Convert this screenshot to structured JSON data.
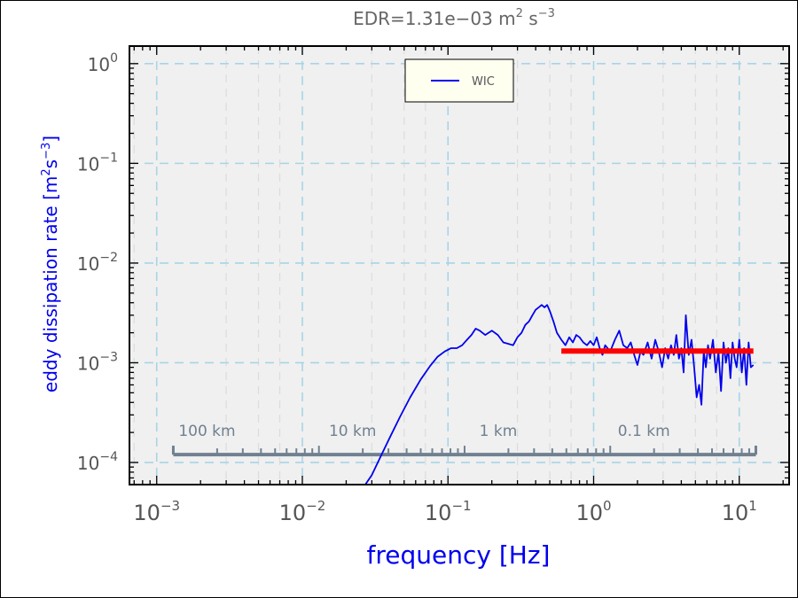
{
  "chart_data": {
    "type": "line",
    "title": "EDR=1.31e−03  m",
    "title_sup1": "2",
    "title_mid": " s",
    "title_sup2": "−3",
    "xlabel": "frequency [Hz]",
    "ylabel_main": "eddy dissipation rate [m",
    "ylabel_sup1": "2",
    "ylabel_mid": "s",
    "ylabel_sup2": "−3",
    "ylabel_end": "]",
    "x_scale": "log",
    "y_scale": "log",
    "xlim": [
      0.00065,
      22
    ],
    "ylim": [
      6e-05,
      1.5
    ],
    "grid": true,
    "legend_placement": "top-center",
    "x_ticks": [
      {
        "value": 0.001,
        "base": "10",
        "exp": "−3"
      },
      {
        "value": 0.01,
        "base": "10",
        "exp": "−2"
      },
      {
        "value": 0.1,
        "base": "10",
        "exp": "−1"
      },
      {
        "value": 1,
        "base": "10",
        "exp": "0"
      },
      {
        "value": 10,
        "base": "10",
        "exp": "1"
      }
    ],
    "y_ticks": [
      {
        "value": 0.0001,
        "base": "10",
        "exp": "−4"
      },
      {
        "value": 0.001,
        "base": "10",
        "exp": "−3"
      },
      {
        "value": 0.01,
        "base": "10",
        "exp": "−2"
      },
      {
        "value": 0.1,
        "base": "10",
        "exp": "−1"
      },
      {
        "value": 1,
        "base": "10",
        "exp": "0"
      }
    ],
    "distance_scale": {
      "labels": [
        {
          "text": "100 km",
          "freq": 0.0013
        },
        {
          "text": "10 km",
          "freq": 0.013
        },
        {
          "text": "1 km",
          "freq": 0.13
        },
        {
          "text": "0.1 km",
          "freq": 1.3
        }
      ],
      "range": [
        0.0013,
        13
      ],
      "y_value": 0.00012,
      "color": "#708090"
    },
    "series": [
      {
        "name": "WIC",
        "color": "#0000ee",
        "x": [
          0.026,
          0.03,
          0.034,
          0.04,
          0.047,
          0.055,
          0.065,
          0.075,
          0.085,
          0.095,
          0.105,
          0.115,
          0.125,
          0.135,
          0.145,
          0.155,
          0.165,
          0.18,
          0.2,
          0.22,
          0.24,
          0.26,
          0.28,
          0.3,
          0.32,
          0.34,
          0.36,
          0.38,
          0.4,
          0.42,
          0.44,
          0.46,
          0.48,
          0.5,
          0.53,
          0.56,
          0.6,
          0.64,
          0.68,
          0.72,
          0.76,
          0.8,
          0.85,
          0.9,
          0.95,
          1.0,
          1.05,
          1.1,
          1.15,
          1.2,
          1.3,
          1.4,
          1.5,
          1.6,
          1.7,
          1.8,
          1.9,
          2.0,
          2.1,
          2.2,
          2.35,
          2.5,
          2.65,
          2.8,
          2.95,
          3.1,
          3.25,
          3.4,
          3.55,
          3.7,
          3.85,
          4.0,
          4.15,
          4.3,
          4.5,
          4.7,
          4.9,
          5.1,
          5.3,
          5.5,
          5.7,
          5.9,
          6.1,
          6.3,
          6.6,
          6.9,
          7.2,
          7.5,
          7.8,
          8.1,
          8.4,
          8.7,
          9.0,
          9.3,
          9.6,
          10.0,
          10.4,
          10.8,
          11.2,
          11.6,
          12.0,
          12.5
        ],
        "y": [
          5.5e-05,
          7.5e-05,
          0.00011,
          0.00018,
          0.00029,
          0.00045,
          0.00068,
          0.00092,
          0.00115,
          0.0013,
          0.0014,
          0.0014,
          0.0015,
          0.0017,
          0.0019,
          0.0022,
          0.0021,
          0.0019,
          0.0021,
          0.0019,
          0.0016,
          0.00155,
          0.0015,
          0.0018,
          0.002,
          0.0024,
          0.0026,
          0.003,
          0.0034,
          0.0036,
          0.0038,
          0.0036,
          0.0038,
          0.0033,
          0.0026,
          0.002,
          0.0017,
          0.0015,
          0.0018,
          0.0016,
          0.0019,
          0.0018,
          0.0016,
          0.0015,
          0.00165,
          0.0015,
          0.0018,
          0.0014,
          0.0012,
          0.0015,
          0.0013,
          0.0017,
          0.0021,
          0.0015,
          0.0014,
          0.0016,
          0.0012,
          0.00095,
          0.0013,
          0.0012,
          0.0016,
          0.0011,
          0.0017,
          0.0013,
          0.0009,
          0.0014,
          0.0011,
          0.0015,
          0.0012,
          0.0019,
          0.0011,
          0.0014,
          0.0008,
          0.003,
          0.0012,
          0.0017,
          0.0009,
          0.00045,
          0.0006,
          0.00038,
          0.0013,
          0.0009,
          0.0015,
          0.0011,
          0.0017,
          0.0008,
          0.0013,
          0.00052,
          0.0016,
          0.001,
          0.0014,
          0.0007,
          0.0016,
          0.0011,
          0.0009,
          0.0017,
          0.0008,
          0.0014,
          0.0006,
          0.0016,
          0.0009,
          0.00095
        ]
      },
      {
        "color": "#ff0000",
        "x": [
          0.6,
          12.5
        ],
        "y": [
          0.00131,
          0.00131
        ]
      }
    ]
  }
}
